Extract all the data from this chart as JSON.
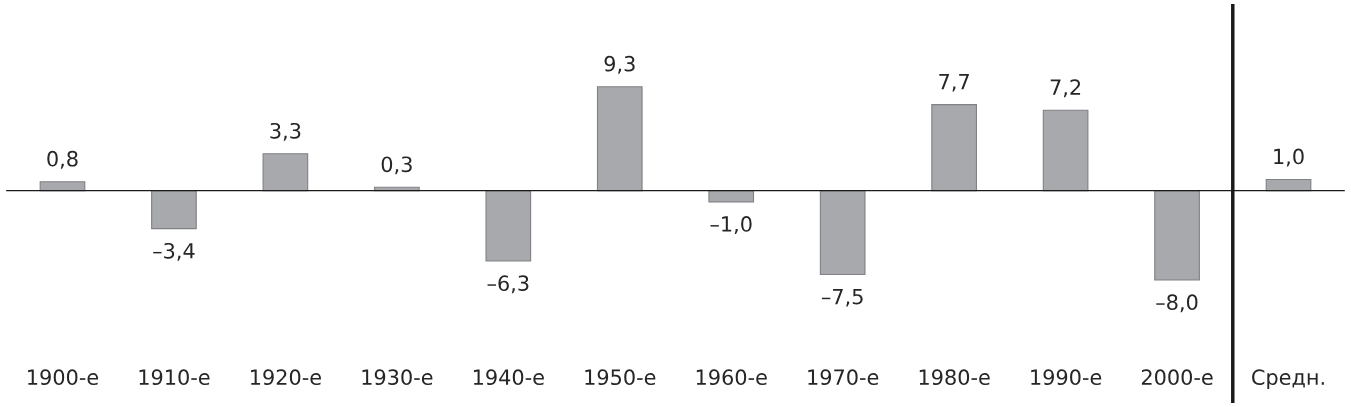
{
  "chart_data": {
    "type": "bar",
    "categories": [
      "1900-е",
      "1910-е",
      "1920-е",
      "1930-е",
      "1940-е",
      "1950-е",
      "1960-е",
      "1970-е",
      "1980-е",
      "1990-е",
      "2000-е",
      "Средн."
    ],
    "values": [
      0.8,
      -3.4,
      3.3,
      0.3,
      -6.3,
      9.3,
      -1.0,
      -7.5,
      7.7,
      7.2,
      -8.0,
      1.0
    ],
    "value_labels": [
      "0,8",
      "–3,4",
      "3,3",
      "0,3",
      "–6,3",
      "9,3",
      "–1,0",
      "–7,5",
      "7,7",
      "7,2",
      "–8,0",
      "1,0"
    ],
    "color": "#a7a9ac",
    "ylim": [
      -19,
      16.7
    ],
    "tick_labels": "x"
  }
}
